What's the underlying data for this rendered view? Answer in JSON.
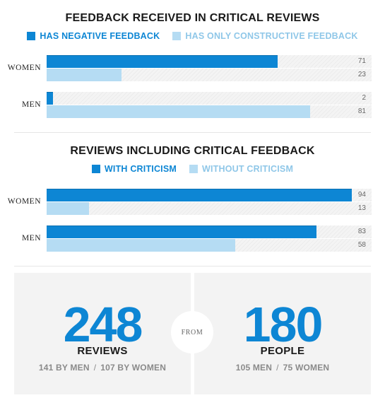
{
  "colors": {
    "primary": "#0d86d4",
    "primary_border": "#0a6fb0",
    "light": "#b5dcf3",
    "light_text": "#8fc7e8",
    "panel_bg": "#f3f3f3",
    "number": "#0d86d4"
  },
  "chart_data": [
    {
      "type": "bar",
      "orientation": "horizontal",
      "title": "FEEDBACK RECEIVED IN CRITICAL REVIEWS",
      "categories": [
        "WOMEN",
        "MEN"
      ],
      "series": [
        {
          "name": "HAS NEGATIVE FEEDBACK",
          "values": [
            71,
            2
          ]
        },
        {
          "name": "HAS ONLY CONSTRUCTIVE FEEDBACK",
          "values": [
            23,
            81
          ]
        }
      ],
      "xlim": [
        0,
        100
      ],
      "legend": "top-center"
    },
    {
      "type": "bar",
      "orientation": "horizontal",
      "title": "REVIEWS INCLUDING CRITICAL FEEDBACK",
      "categories": [
        "WOMEN",
        "MEN"
      ],
      "series": [
        {
          "name": "WITH CRITICISM",
          "values": [
            94,
            83
          ]
        },
        {
          "name": "WITHOUT CRITICISM",
          "values": [
            13,
            58
          ]
        }
      ],
      "xlim": [
        0,
        100
      ],
      "legend": "top-center"
    }
  ],
  "summary": {
    "reviews": {
      "number": "248",
      "label": "REVIEWS",
      "sub_men": "141 BY MEN",
      "sub_women": "107 BY WOMEN"
    },
    "from_label": "FROM",
    "people": {
      "number": "180",
      "label": "PEOPLE",
      "sub_men": "105 MEN",
      "sub_women": "75 WOMEN"
    },
    "separator": "/"
  }
}
